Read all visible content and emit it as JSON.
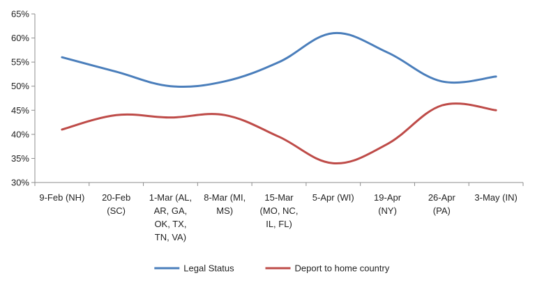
{
  "chart_data": {
    "type": "line",
    "title": "",
    "xlabel": "",
    "ylabel": "",
    "ylim": [
      30,
      65
    ],
    "y_ticks": [
      30,
      35,
      40,
      45,
      50,
      55,
      60,
      65
    ],
    "y_tick_labels": [
      "30%",
      "35%",
      "40%",
      "45%",
      "50%",
      "55%",
      "60%",
      "65%"
    ],
    "grid": false,
    "legend_position": "bottom",
    "categories": [
      [
        "9-Feb (NH)"
      ],
      [
        "20-Feb",
        "(SC)"
      ],
      [
        "1-Mar (AL,",
        "AR, GA,",
        "OK, TX,",
        "TN, VA)"
      ],
      [
        "8-Mar (MI,",
        "MS)"
      ],
      [
        "15-Mar",
        "(MO, NC,",
        "IL, FL)"
      ],
      [
        "5-Apr (WI)"
      ],
      [
        "19-Apr",
        "(NY)"
      ],
      [
        "26-Apr",
        "(PA)"
      ],
      [
        "3-May (IN)"
      ]
    ],
    "series": [
      {
        "name": "Legal Status",
        "color": "#4a7ebb",
        "values": [
          56,
          53,
          50,
          51,
          55,
          61,
          57,
          51,
          52
        ]
      },
      {
        "name": "Deport to home country",
        "color": "#be4b48",
        "values": [
          41,
          44,
          43.5,
          44,
          39.5,
          34,
          38,
          46,
          45
        ]
      }
    ]
  }
}
